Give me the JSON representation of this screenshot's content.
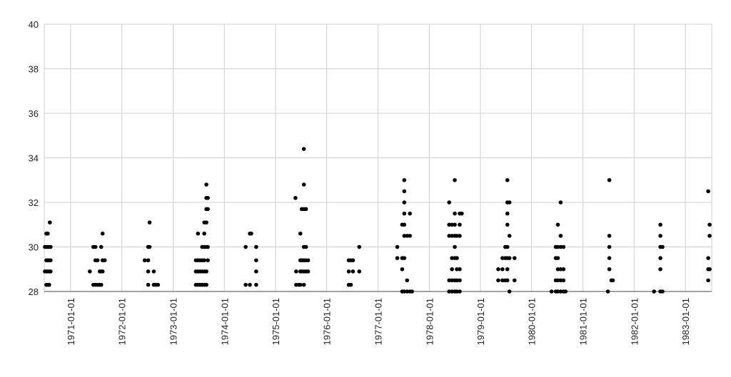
{
  "chart_data": {
    "type": "scatter",
    "color": "#000000",
    "grid": true,
    "xlim": [
      "1970-06-27",
      "1983-07-08"
    ],
    "xticks": [
      "1971-01-01",
      "1972-01-01",
      "1973-01-01",
      "1974-01-01",
      "1975-01-01",
      "1976-01-01",
      "1977-01-01",
      "1978-01-01",
      "1979-01-01",
      "1980-01-01",
      "1981-01-01",
      "1982-01-01",
      "1983-01-01"
    ],
    "ylim": [
      28,
      40
    ],
    "yticks": [
      28,
      30,
      32,
      34,
      36,
      38,
      40
    ],
    "x": [
      "1970-07-02",
      "1970-07-02",
      "1970-07-12",
      "1970-07-12",
      "1970-07-12",
      "1970-07-12",
      "1970-07-12",
      "1970-07-22",
      "1970-07-22",
      "1970-07-22",
      "1970-07-22",
      "1970-07-22",
      "1970-08-01",
      "1970-08-01",
      "1970-08-01",
      "1970-08-01",
      "1970-08-06",
      "1970-08-11",
      "1970-08-11",
      "1970-08-11",
      "1971-05-18",
      "1971-06-12",
      "1971-06-12",
      "1971-06-27",
      "1971-06-27",
      "1971-06-27",
      "1971-07-12",
      "1971-07-12",
      "1971-07-28",
      "1971-07-28",
      "1971-08-07",
      "1971-08-07",
      "1971-08-07",
      "1971-08-17",
      "1971-08-17",
      "1971-08-17",
      "1971-09-01",
      "1972-06-12",
      "1972-07-07",
      "1972-07-07",
      "1972-07-07",
      "1972-07-07",
      "1972-07-17",
      "1972-07-17",
      "1972-08-16",
      "1972-08-16",
      "1972-08-31",
      "1972-09-15",
      "1973-06-12",
      "1973-06-12",
      "1973-06-12",
      "1973-06-27",
      "1973-06-27",
      "1973-06-27",
      "1973-06-27",
      "1973-07-12",
      "1973-07-12",
      "1973-07-12",
      "1973-07-27",
      "1973-07-27",
      "1973-07-27",
      "1973-07-27",
      "1973-08-11",
      "1973-08-11",
      "1973-08-11",
      "1973-08-11",
      "1973-08-11",
      "1973-08-11",
      "1973-08-26",
      "1973-08-26",
      "1973-08-26",
      "1973-08-26",
      "1973-08-26",
      "1973-08-26",
      "1973-08-26",
      "1973-09-05",
      "1973-09-05",
      "1973-09-05",
      "1973-09-05",
      "1974-06-02",
      "1974-06-02",
      "1974-07-02",
      "1974-07-02",
      "1974-07-12",
      "1974-08-16",
      "1974-08-16",
      "1974-08-16",
      "1974-08-16",
      "1975-05-23",
      "1975-05-28",
      "1975-05-28",
      "1975-06-17",
      "1975-06-27",
      "1975-06-27",
      "1975-06-27",
      "1975-06-27",
      "1975-07-07",
      "1975-07-07",
      "1975-07-07",
      "1975-07-22",
      "1975-07-22",
      "1975-07-22",
      "1975-07-22",
      "1975-07-22",
      "1975-07-22",
      "1975-07-22",
      "1975-08-06",
      "1975-08-06",
      "1975-08-06",
      "1975-08-06",
      "1975-08-21",
      "1975-08-21",
      "1976-06-06",
      "1976-06-06",
      "1976-06-06",
      "1976-06-21",
      "1976-06-21",
      "1976-07-06",
      "1976-07-06",
      "1976-08-20",
      "1976-08-20",
      "1977-05-18",
      "1977-05-18",
      "1977-06-22",
      "1977-06-22",
      "1977-06-22",
      "1977-06-22",
      "1977-07-07",
      "1977-07-07",
      "1977-07-07",
      "1977-07-07",
      "1977-07-07",
      "1977-07-07",
      "1977-07-07",
      "1977-07-07",
      "1977-07-27",
      "1977-07-27",
      "1977-07-27",
      "1977-08-16",
      "1977-08-16",
      "1977-08-16",
      "1977-08-31",
      "1978-05-23",
      "1978-05-23",
      "1978-05-23",
      "1978-05-23",
      "1978-05-23",
      "1978-06-12",
      "1978-06-12",
      "1978-06-12",
      "1978-06-12",
      "1978-06-12",
      "1978-06-12",
      "1978-07-02",
      "1978-07-02",
      "1978-07-02",
      "1978-07-02",
      "1978-07-02",
      "1978-07-02",
      "1978-07-02",
      "1978-07-02",
      "1978-07-17",
      "1978-07-17",
      "1978-07-17",
      "1978-07-17",
      "1978-07-17",
      "1978-08-06",
      "1978-08-06",
      "1978-08-06",
      "1978-08-06",
      "1978-08-06",
      "1978-08-06",
      "1978-08-21",
      "1979-05-08",
      "1979-05-08",
      "1979-06-07",
      "1979-06-07",
      "1979-06-07",
      "1979-06-27",
      "1979-06-27",
      "1979-06-27",
      "1979-07-12",
      "1979-07-12",
      "1979-07-12",
      "1979-07-12",
      "1979-07-12",
      "1979-07-12",
      "1979-07-12",
      "1979-07-12",
      "1979-07-27",
      "1979-07-27",
      "1979-07-27",
      "1979-07-27",
      "1979-09-01",
      "1979-09-01",
      "1980-05-22",
      "1980-06-21",
      "1980-06-21",
      "1980-06-21",
      "1980-06-21",
      "1980-07-06",
      "1980-07-06",
      "1980-07-06",
      "1980-07-06",
      "1980-07-06",
      "1980-07-06",
      "1980-07-26",
      "1980-07-26",
      "1980-07-26",
      "1980-07-26",
      "1980-07-26",
      "1980-07-26",
      "1980-08-15",
      "1980-08-15",
      "1980-08-15",
      "1980-08-15",
      "1980-08-30",
      "1981-06-28",
      "1981-07-08",
      "1981-07-08",
      "1981-07-08",
      "1981-07-08",
      "1981-07-08",
      "1981-07-23",
      "1981-08-02",
      "1982-05-23",
      "1982-07-07",
      "1982-07-07",
      "1982-07-07",
      "1982-07-07",
      "1982-07-07",
      "1982-07-07",
      "1982-07-22",
      "1982-07-22",
      "1983-06-13",
      "1983-06-13",
      "1983-06-13",
      "1983-06-13",
      "1983-06-23",
      "1983-06-23",
      "1983-06-23"
    ],
    "values": [
      28.9,
      30,
      30.6,
      30,
      29.4,
      28.9,
      28.3,
      30.6,
      30,
      29.4,
      28.9,
      28.3,
      30,
      29.4,
      28.9,
      28.3,
      31.1,
      30,
      29.4,
      28.9,
      28.9,
      30,
      28.3,
      30,
      29.4,
      28.3,
      28.3,
      29.4,
      28.3,
      28.9,
      30,
      28.9,
      28.3,
      30.6,
      29.4,
      28.9,
      29.4,
      29.4,
      28.9,
      29.4,
      30,
      28.3,
      31.1,
      30,
      28.9,
      28.3,
      28.3,
      28.3,
      28.9,
      28.3,
      29.4,
      30.6,
      29.4,
      28.9,
      28.3,
      29.4,
      28.9,
      28.3,
      30,
      29.4,
      28.9,
      28.3,
      30,
      30.6,
      31.1,
      29.4,
      28.9,
      28.3,
      32.8,
      32.2,
      31.7,
      31.1,
      30,
      28.9,
      28.3,
      32.2,
      31.7,
      30,
      29.4,
      30,
      28.3,
      30.6,
      28.3,
      30.6,
      30,
      29.4,
      28.9,
      28.3,
      32.2,
      28.9,
      28.3,
      28.3,
      30.6,
      29.4,
      28.9,
      28.3,
      31.7,
      29.4,
      28.9,
      34.4,
      32.8,
      31.7,
      30,
      29.4,
      28.9,
      28.3,
      31.7,
      30,
      29.4,
      28.9,
      29.4,
      28.9,
      29.4,
      28.9,
      28.3,
      29.4,
      28.3,
      29.4,
      28.9,
      30,
      28.9,
      30,
      29.5,
      31,
      29.5,
      29,
      28,
      33,
      32.5,
      32,
      31.5,
      31,
      30.5,
      29.5,
      28,
      28.5,
      28,
      30.5,
      31.5,
      30.5,
      28,
      28,
      32,
      31,
      30.5,
      28.5,
      28,
      31,
      30.5,
      29.5,
      29,
      28.5,
      28,
      33,
      31.5,
      31,
      30.5,
      30,
      29.5,
      28.5,
      28,
      30.5,
      29.5,
      29,
      28.5,
      28,
      31.5,
      31,
      30.5,
      29,
      28.5,
      28,
      31.5,
      29,
      28.5,
      29.5,
      29,
      28.5,
      30,
      29.5,
      28.5,
      33,
      32,
      31.5,
      31,
      30,
      29.5,
      29,
      28.5,
      32,
      30.5,
      29.5,
      28,
      29.5,
      28.5,
      28,
      30,
      29.5,
      28,
      28.5,
      31,
      30,
      29.5,
      29,
      28.5,
      28,
      32,
      30.5,
      30,
      29,
      28.5,
      28,
      30,
      29,
      28.5,
      28,
      28,
      28,
      33,
      30.5,
      30,
      29.5,
      29,
      28.5,
      28.5,
      28,
      29,
      29.5,
      30,
      30.5,
      31,
      28,
      30,
      28,
      32.5,
      29.5,
      29,
      28.5,
      31,
      30.5,
      29
    ]
  }
}
